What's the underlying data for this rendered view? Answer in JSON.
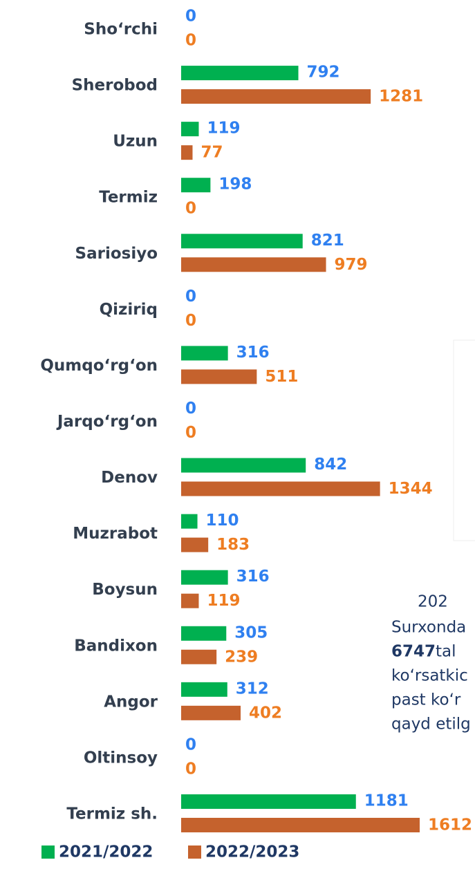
{
  "chart_data": {
    "type": "hbar",
    "categories": [
      "Sho‘rchi",
      "Sherobod",
      "Uzun",
      "Termiz",
      "Sariosiyo",
      "Qiziriq",
      "Qumqo‘rg‘on",
      "Jarqo‘rg‘on",
      "Denov",
      "Muzrabot",
      "Boysun",
      "Bandixon",
      "Angor",
      "Oltinsoy",
      "Termiz sh."
    ],
    "series": [
      {
        "name": "2021/2022",
        "color": "#00b050",
        "label_color": "#2f80f0",
        "values": [
          0,
          792,
          119,
          198,
          821,
          0,
          316,
          0,
          842,
          110,
          316,
          305,
          312,
          0,
          1181
        ]
      },
      {
        "name": "2022/2023",
        "color": "#c5622d",
        "label_color": "#ee7d22",
        "values": [
          0,
          1281,
          77,
          0,
          979,
          0,
          511,
          0,
          1344,
          183,
          119,
          239,
          402,
          0,
          1612
        ]
      }
    ],
    "xlim": [
      0,
      1612
    ],
    "annotation": [
      "202",
      "Surxonda",
      "6747",
      "tal",
      "ko‘rsatkic",
      "past ko‘r",
      "qayd etilg"
    ]
  }
}
